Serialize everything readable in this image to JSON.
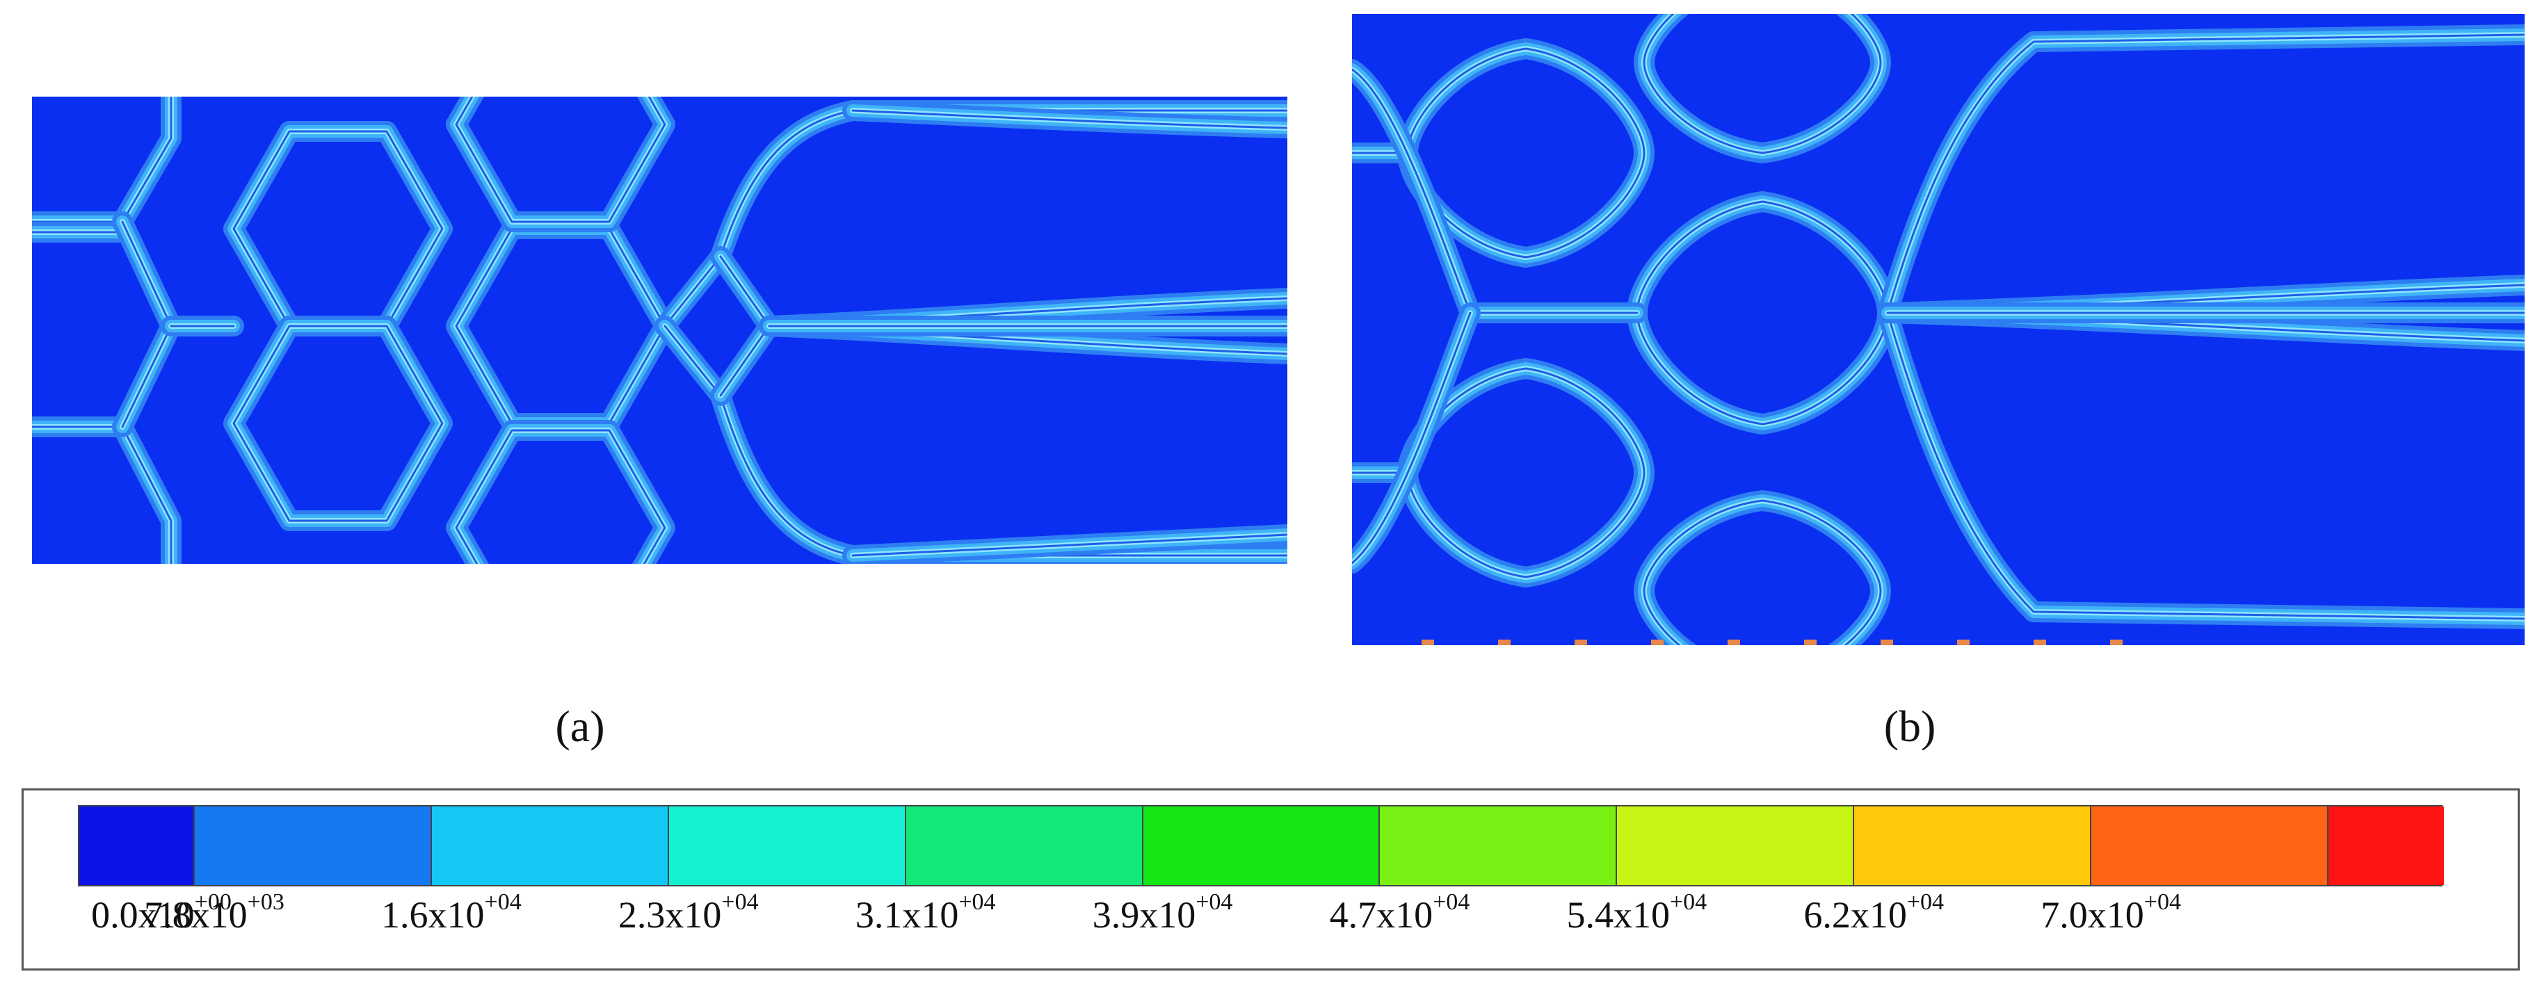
{
  "figure": {
    "panels": [
      {
        "id": "a",
        "label": "(a)",
        "structure": "hexagonal lattice",
        "field_background": "#0a2ff0"
      },
      {
        "id": "b",
        "label": "(b)",
        "structure": "diamond lattice",
        "field_background": "#0a2ff0"
      }
    ]
  },
  "colorbar": {
    "colors": [
      "#0a14e8",
      "#1478f0",
      "#14c8f5",
      "#14f0d2",
      "#14e87a",
      "#14e614",
      "#78f014",
      "#c8f514",
      "#ffc80a",
      "#ff6414",
      "#ff1414"
    ],
    "tick_mantissas": [
      "0.0x10",
      "7.8x10",
      "1.6x10",
      "2.3x10",
      "3.1x10",
      "3.9x10",
      "4.7x10",
      "5.4x10",
      "6.2x10",
      "7.0x10"
    ],
    "tick_exponents": [
      "+00",
      "+03",
      "+04",
      "+04",
      "+04",
      "+04",
      "+04",
      "+04",
      "+04",
      "+04"
    ]
  }
}
